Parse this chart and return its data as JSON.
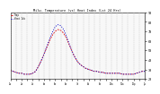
{
  "title": "Milw. Temperature (vs) Heat Index (Lst 24 Hrs)",
  "background_color": "#ffffff",
  "plot_background": "#f8f8f8",
  "temp_color": "#dd0000",
  "heat_color": "#0000cc",
  "grid_color": "#bbbbbb",
  "ylim": [
    20,
    90
  ],
  "ytick_labels": [
    "20",
    "30",
    "40",
    "50",
    "60",
    "70",
    "80",
    "90"
  ],
  "ytick_vals": [
    20,
    30,
    40,
    50,
    60,
    70,
    80,
    90
  ],
  "n_points": 49,
  "temp_values": [
    29,
    28,
    27,
    26,
    26,
    25,
    25,
    25,
    26,
    28,
    33,
    39,
    46,
    53,
    60,
    66,
    70,
    72,
    71,
    68,
    63,
    56,
    49,
    43,
    38,
    35,
    33,
    31,
    30,
    29,
    28,
    28,
    27,
    27,
    26,
    26,
    26,
    26,
    26,
    26,
    25,
    25,
    25,
    25,
    25,
    26,
    27,
    28,
    28
  ],
  "heat_values": [
    29,
    28,
    27,
    26,
    26,
    25,
    25,
    25,
    26,
    28,
    33,
    39,
    46,
    54,
    62,
    69,
    75,
    77,
    76,
    72,
    65,
    57,
    49,
    43,
    38,
    35,
    33,
    31,
    30,
    29,
    28,
    28,
    27,
    27,
    26,
    26,
    26,
    26,
    26,
    26,
    25,
    25,
    25,
    25,
    25,
    26,
    27,
    28,
    28
  ],
  "xlabel_texts": [
    "1a",
    "2a",
    "3a",
    "4a",
    "5a",
    "6a",
    "7a",
    "8a",
    "9a",
    "10a",
    "11a",
    "12p",
    "1p",
    "2p",
    "3p",
    "4p",
    "5p",
    "6p",
    "7p",
    "8p",
    "9p",
    "10p",
    "11p",
    "12a"
  ],
  "xtick_every": 2
}
